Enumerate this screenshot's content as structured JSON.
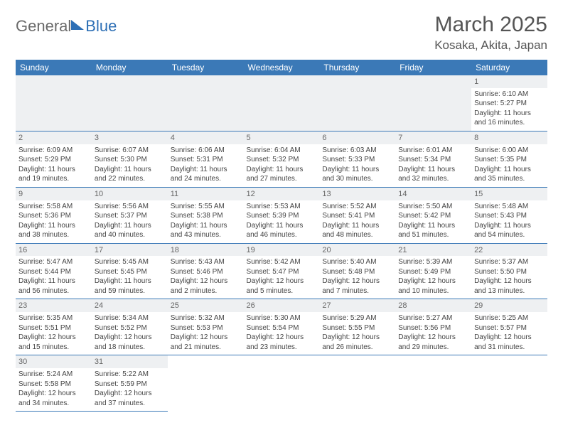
{
  "logo": {
    "part1": "General",
    "part2": "Blue"
  },
  "title": "March 2025",
  "location": "Kosaka, Akita, Japan",
  "colors": {
    "header_bg": "#3b79b7",
    "header_text": "#ffffff",
    "rule": "#3b79b7",
    "daynum_bg": "#eef0f2",
    "body_text": "#444444",
    "title_text": "#555555",
    "logo_gray": "#6a6a6a",
    "logo_blue": "#2d6fb5"
  },
  "weekdays": [
    "Sunday",
    "Monday",
    "Tuesday",
    "Wednesday",
    "Thursday",
    "Friday",
    "Saturday"
  ],
  "weeks": [
    [
      null,
      null,
      null,
      null,
      null,
      null,
      {
        "n": "1",
        "sr": "Sunrise: 6:10 AM",
        "ss": "Sunset: 5:27 PM",
        "dl": "Daylight: 11 hours and 16 minutes."
      }
    ],
    [
      {
        "n": "2",
        "sr": "Sunrise: 6:09 AM",
        "ss": "Sunset: 5:29 PM",
        "dl": "Daylight: 11 hours and 19 minutes."
      },
      {
        "n": "3",
        "sr": "Sunrise: 6:07 AM",
        "ss": "Sunset: 5:30 PM",
        "dl": "Daylight: 11 hours and 22 minutes."
      },
      {
        "n": "4",
        "sr": "Sunrise: 6:06 AM",
        "ss": "Sunset: 5:31 PM",
        "dl": "Daylight: 11 hours and 24 minutes."
      },
      {
        "n": "5",
        "sr": "Sunrise: 6:04 AM",
        "ss": "Sunset: 5:32 PM",
        "dl": "Daylight: 11 hours and 27 minutes."
      },
      {
        "n": "6",
        "sr": "Sunrise: 6:03 AM",
        "ss": "Sunset: 5:33 PM",
        "dl": "Daylight: 11 hours and 30 minutes."
      },
      {
        "n": "7",
        "sr": "Sunrise: 6:01 AM",
        "ss": "Sunset: 5:34 PM",
        "dl": "Daylight: 11 hours and 32 minutes."
      },
      {
        "n": "8",
        "sr": "Sunrise: 6:00 AM",
        "ss": "Sunset: 5:35 PM",
        "dl": "Daylight: 11 hours and 35 minutes."
      }
    ],
    [
      {
        "n": "9",
        "sr": "Sunrise: 5:58 AM",
        "ss": "Sunset: 5:36 PM",
        "dl": "Daylight: 11 hours and 38 minutes."
      },
      {
        "n": "10",
        "sr": "Sunrise: 5:56 AM",
        "ss": "Sunset: 5:37 PM",
        "dl": "Daylight: 11 hours and 40 minutes."
      },
      {
        "n": "11",
        "sr": "Sunrise: 5:55 AM",
        "ss": "Sunset: 5:38 PM",
        "dl": "Daylight: 11 hours and 43 minutes."
      },
      {
        "n": "12",
        "sr": "Sunrise: 5:53 AM",
        "ss": "Sunset: 5:39 PM",
        "dl": "Daylight: 11 hours and 46 minutes."
      },
      {
        "n": "13",
        "sr": "Sunrise: 5:52 AM",
        "ss": "Sunset: 5:41 PM",
        "dl": "Daylight: 11 hours and 48 minutes."
      },
      {
        "n": "14",
        "sr": "Sunrise: 5:50 AM",
        "ss": "Sunset: 5:42 PM",
        "dl": "Daylight: 11 hours and 51 minutes."
      },
      {
        "n": "15",
        "sr": "Sunrise: 5:48 AM",
        "ss": "Sunset: 5:43 PM",
        "dl": "Daylight: 11 hours and 54 minutes."
      }
    ],
    [
      {
        "n": "16",
        "sr": "Sunrise: 5:47 AM",
        "ss": "Sunset: 5:44 PM",
        "dl": "Daylight: 11 hours and 56 minutes."
      },
      {
        "n": "17",
        "sr": "Sunrise: 5:45 AM",
        "ss": "Sunset: 5:45 PM",
        "dl": "Daylight: 11 hours and 59 minutes."
      },
      {
        "n": "18",
        "sr": "Sunrise: 5:43 AM",
        "ss": "Sunset: 5:46 PM",
        "dl": "Daylight: 12 hours and 2 minutes."
      },
      {
        "n": "19",
        "sr": "Sunrise: 5:42 AM",
        "ss": "Sunset: 5:47 PM",
        "dl": "Daylight: 12 hours and 5 minutes."
      },
      {
        "n": "20",
        "sr": "Sunrise: 5:40 AM",
        "ss": "Sunset: 5:48 PM",
        "dl": "Daylight: 12 hours and 7 minutes."
      },
      {
        "n": "21",
        "sr": "Sunrise: 5:39 AM",
        "ss": "Sunset: 5:49 PM",
        "dl": "Daylight: 12 hours and 10 minutes."
      },
      {
        "n": "22",
        "sr": "Sunrise: 5:37 AM",
        "ss": "Sunset: 5:50 PM",
        "dl": "Daylight: 12 hours and 13 minutes."
      }
    ],
    [
      {
        "n": "23",
        "sr": "Sunrise: 5:35 AM",
        "ss": "Sunset: 5:51 PM",
        "dl": "Daylight: 12 hours and 15 minutes."
      },
      {
        "n": "24",
        "sr": "Sunrise: 5:34 AM",
        "ss": "Sunset: 5:52 PM",
        "dl": "Daylight: 12 hours and 18 minutes."
      },
      {
        "n": "25",
        "sr": "Sunrise: 5:32 AM",
        "ss": "Sunset: 5:53 PM",
        "dl": "Daylight: 12 hours and 21 minutes."
      },
      {
        "n": "26",
        "sr": "Sunrise: 5:30 AM",
        "ss": "Sunset: 5:54 PM",
        "dl": "Daylight: 12 hours and 23 minutes."
      },
      {
        "n": "27",
        "sr": "Sunrise: 5:29 AM",
        "ss": "Sunset: 5:55 PM",
        "dl": "Daylight: 12 hours and 26 minutes."
      },
      {
        "n": "28",
        "sr": "Sunrise: 5:27 AM",
        "ss": "Sunset: 5:56 PM",
        "dl": "Daylight: 12 hours and 29 minutes."
      },
      {
        "n": "29",
        "sr": "Sunrise: 5:25 AM",
        "ss": "Sunset: 5:57 PM",
        "dl": "Daylight: 12 hours and 31 minutes."
      }
    ],
    [
      {
        "n": "30",
        "sr": "Sunrise: 5:24 AM",
        "ss": "Sunset: 5:58 PM",
        "dl": "Daylight: 12 hours and 34 minutes."
      },
      {
        "n": "31",
        "sr": "Sunrise: 5:22 AM",
        "ss": "Sunset: 5:59 PM",
        "dl": "Daylight: 12 hours and 37 minutes."
      },
      null,
      null,
      null,
      null,
      null
    ]
  ]
}
